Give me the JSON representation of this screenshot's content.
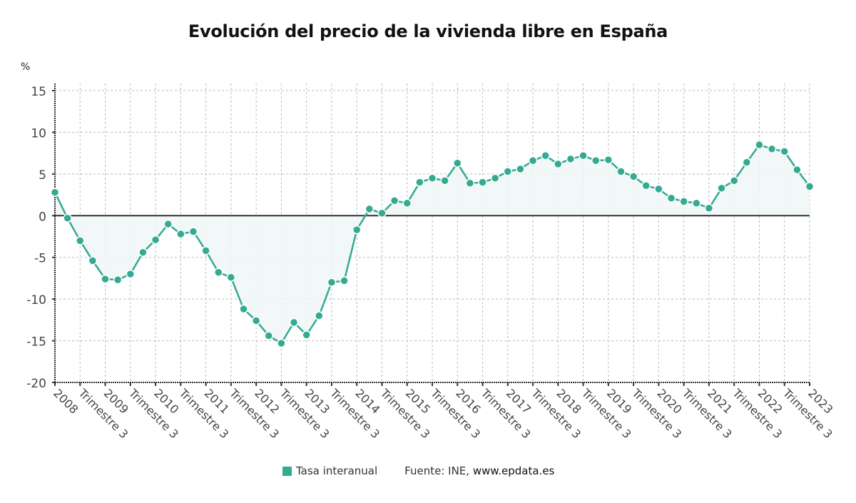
{
  "title": "Evolución del precio de la vivienda libre en España",
  "unit_label": "%",
  "legend": {
    "series_label": "Tasa interanual",
    "source_prefix": "Fuente: INE, ",
    "source_site": "www.epdata.es"
  },
  "colors": {
    "series": "#35aa93",
    "area": "#eef7f6",
    "grid": "#bbbbbb",
    "axis": "#333333"
  },
  "chart_data": {
    "type": "line",
    "title": "Evolución del precio de la vivienda libre en España",
    "xlabel": "",
    "ylabel": "%",
    "ylim": [
      -20,
      15
    ],
    "yticks": [
      15,
      10,
      5,
      0,
      -5,
      -10,
      -15,
      -20
    ],
    "grid": true,
    "legend_position": "bottom",
    "x_tick_labels": [
      "2008",
      "Trimestre 3",
      "2009",
      "Trimestre 3",
      "2010",
      "Trimestre 3",
      "2011",
      "Trimestre 3",
      "2012",
      "Trimestre 3",
      "2013",
      "Trimestre 3",
      "2014",
      "Trimestre 3",
      "2015",
      "Trimestre 3",
      "2016",
      "Trimestre 3",
      "2017",
      "Trimestre 3",
      "2018",
      "Trimestre 3",
      "2019",
      "Trimestre 3",
      "2020",
      "Trimestre 3",
      "2021",
      "Trimestre 3",
      "2022",
      "Trimestre 3",
      "2023"
    ],
    "x": [
      "2008 T1",
      "2008 T2",
      "2008 T3",
      "2008 T4",
      "2009 T1",
      "2009 T2",
      "2009 T3",
      "2009 T4",
      "2010 T1",
      "2010 T2",
      "2010 T3",
      "2010 T4",
      "2011 T1",
      "2011 T2",
      "2011 T3",
      "2011 T4",
      "2012 T1",
      "2012 T2",
      "2012 T3",
      "2012 T4",
      "2013 T1",
      "2013 T2",
      "2013 T3",
      "2013 T4",
      "2014 T1",
      "2014 T2",
      "2014 T3",
      "2014 T4",
      "2015 T1",
      "2015 T2",
      "2015 T3",
      "2015 T4",
      "2016 T1",
      "2016 T2",
      "2016 T3",
      "2016 T4",
      "2017 T1",
      "2017 T2",
      "2017 T3",
      "2017 T4",
      "2018 T1",
      "2018 T2",
      "2018 T3",
      "2018 T4",
      "2019 T1",
      "2019 T2",
      "2019 T3",
      "2019 T4",
      "2020 T1",
      "2020 T2",
      "2020 T3",
      "2020 T4",
      "2021 T1",
      "2021 T2",
      "2021 T3",
      "2021 T4",
      "2022 T1",
      "2022 T2",
      "2022 T3",
      "2022 T4",
      "2023 T1"
    ],
    "series": [
      {
        "name": "Tasa interanual",
        "values": [
          2.8,
          -0.3,
          -3.0,
          -5.4,
          -7.6,
          -7.7,
          -7.0,
          -4.4,
          -2.9,
          -1.0,
          -2.2,
          -1.9,
          -4.2,
          -6.8,
          -7.4,
          -11.2,
          -12.6,
          -14.4,
          -15.3,
          -12.8,
          -14.3,
          -12.0,
          -8.0,
          -7.8,
          -1.7,
          0.8,
          0.3,
          1.8,
          1.5,
          4.0,
          4.5,
          4.2,
          6.3,
          3.9,
          4.0,
          4.5,
          5.3,
          5.6,
          6.6,
          7.2,
          6.2,
          6.8,
          7.2,
          6.6,
          6.7,
          5.3,
          4.7,
          3.6,
          3.2,
          2.1,
          1.7,
          1.5,
          0.9,
          3.3,
          4.2,
          6.4,
          8.5,
          8.0,
          7.7,
          5.5,
          3.5
        ]
      }
    ]
  }
}
